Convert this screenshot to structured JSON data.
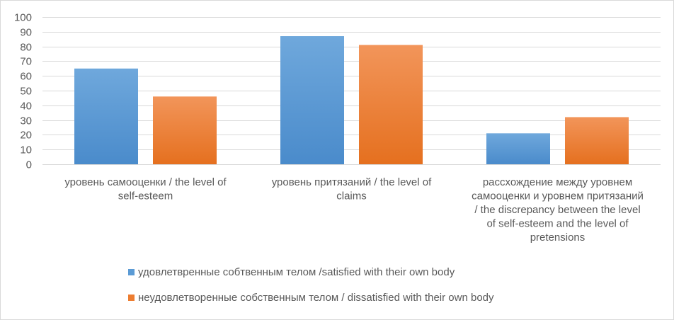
{
  "chart_data": {
    "type": "bar",
    "title": "",
    "xlabel": "",
    "ylabel": "",
    "ylim": [
      0,
      100
    ],
    "y_ticks": [
      0,
      10,
      20,
      30,
      40,
      50,
      60,
      70,
      80,
      90,
      100
    ],
    "grid": true,
    "legend_position": "bottom",
    "categories": [
      "уровень самооценки / the level of self-esteem",
      "уровень притязаний / the level of claims",
      "рассхождение  между уровнем самооценки и уровнем притязаний / the discrepancy between the level of self-esteem and the level of pretensions"
    ],
    "category_label_lines": [
      [
        "уровень самооценки / the level of",
        "self-esteem"
      ],
      [
        "уровень притязаний / the level of",
        "claims"
      ],
      [
        "рассхождение  между уровнем",
        "самооценки и уровнем притязаний",
        "/ the discrepancy between the level",
        "of self-esteem and the level of",
        "pretensions"
      ]
    ],
    "series": [
      {
        "name": "удовлетвренные собтвенным телом /satisfied with their own body",
        "color": "#5B9BD5",
        "values": [
          65,
          87,
          21
        ]
      },
      {
        "name": "неудовлетворенные собственным телом / dissatisfied with their own body",
        "color": "#ED7D31",
        "values": [
          46,
          81,
          32
        ]
      }
    ]
  }
}
